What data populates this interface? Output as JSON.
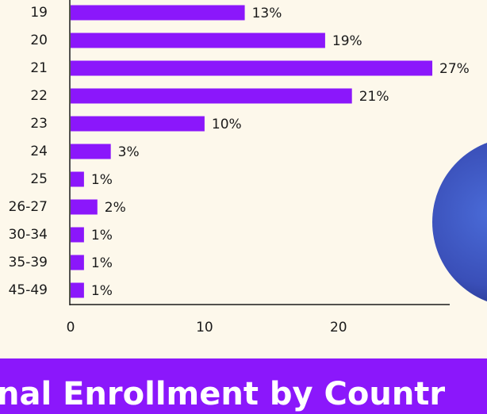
{
  "chart_data": {
    "type": "bar",
    "orientation": "horizontal",
    "categories": [
      "19",
      "20",
      "21",
      "22",
      "23",
      "24",
      "25",
      "26-27",
      "30-34",
      "35-39",
      "45-49"
    ],
    "values": [
      13,
      19,
      27,
      21,
      10,
      3,
      1,
      2,
      1,
      1,
      1
    ],
    "value_labels": [
      "13%",
      "19%",
      "27%",
      "21%",
      "10%",
      "3%",
      "1%",
      "2%",
      "1%",
      "1%",
      "1%"
    ],
    "color": "#8b17fb",
    "xlim": [
      0,
      28.3
    ],
    "xticks": [
      0,
      10,
      20
    ]
  },
  "banner_title": "nal Enrollment by Countr"
}
